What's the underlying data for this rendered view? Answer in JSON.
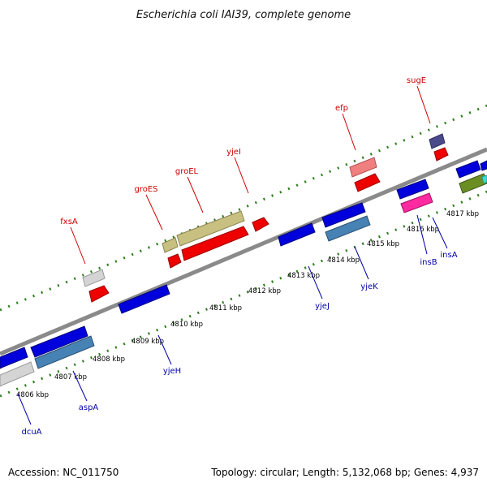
{
  "title": "Escherichia coli IAI39, complete genome",
  "footer": {
    "accession": "Accession: NC_011750",
    "summary": "Topology: circular; Length: 5,132,068 bp; Genes: 4,937"
  },
  "colors": {
    "backbone": "#8a8a8a",
    "tick_green": "#2e7d1e",
    "label_red": "#cc0000",
    "label_blue": "#0000aa"
  },
  "scale_labels": [
    "4806 kbp",
    "4807 kbp",
    "4808 kbp",
    "4809 kbp",
    "4810 kbp",
    "4811 kbp",
    "4812 kbp",
    "4813 kbp",
    "4814 kbp",
    "4815 kbp",
    "4816 kbp",
    "4817 kbp"
  ],
  "upper_gene_labels": [
    "fxsA",
    "groES",
    "groEL",
    "yjeI",
    "efp",
    "sugE"
  ],
  "lower_gene_labels": [
    "dcuA",
    "aspA",
    "yjeH",
    "yjeJ",
    "yjeK",
    "insB",
    "insA"
  ]
}
